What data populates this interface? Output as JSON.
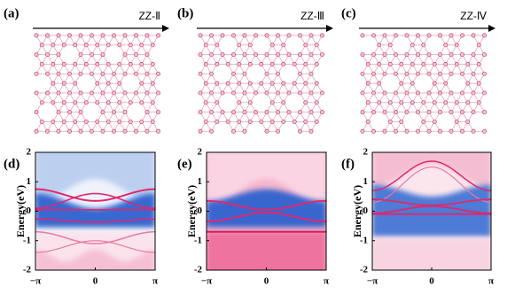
{
  "panels": [
    {
      "label": "(a)",
      "title": "ZZ-Ⅱ"
    },
    {
      "label": "(b)",
      "title": "ZZ-Ⅲ"
    },
    {
      "label": "(c)",
      "title": "ZZ-Ⅳ"
    }
  ],
  "bands": [
    {
      "label": "(d)",
      "ylabel": "Energy(eV)",
      "ylim": [
        -2,
        2
      ],
      "yticks": [
        2,
        1,
        0,
        -1,
        -2
      ],
      "xticks": [
        "−π",
        "0",
        "π"
      ]
    },
    {
      "label": "(e)",
      "ylabel": "Energy(eV)",
      "ylim": [
        -2,
        2
      ],
      "yticks": [
        2,
        1,
        0,
        -1,
        -2
      ],
      "xticks": [
        "−π",
        "0",
        "π"
      ]
    },
    {
      "label": "(f)",
      "ylabel": "Energy(eV)",
      "ylim": [
        -2,
        2
      ],
      "yticks": [
        2,
        1,
        0,
        -1,
        -2
      ],
      "xticks": [
        "−π",
        "0",
        "π"
      ]
    }
  ]
}
